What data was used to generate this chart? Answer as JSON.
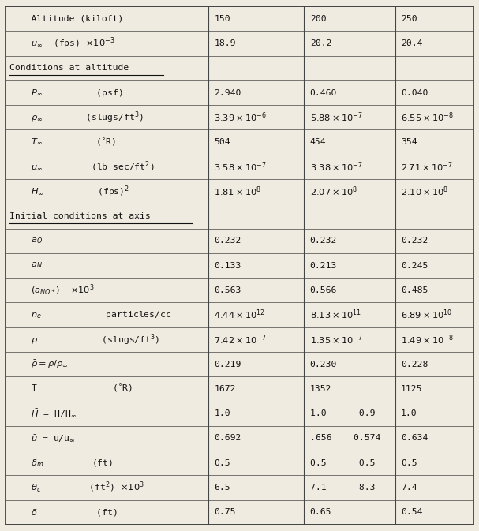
{
  "figsize": [
    6.07,
    6.73
  ],
  "dpi": 100,
  "bg_color": "#f0ebe0",
  "border_color": "#444444",
  "col_bounds": [
    0.012,
    0.435,
    0.635,
    0.825,
    0.988
  ],
  "mathtext_rows": [
    [
      "    Altitude (kiloft)",
      "150",
      "200",
      "250",
      false
    ],
    [
      "    $u_{\\infty}$  (fps) $\\times 10^{-3}$",
      "18.9",
      "20.2",
      "20.4",
      false
    ],
    [
      "Conditions at altitude",
      "",
      "",
      "",
      true
    ],
    [
      "    $P_{\\infty}$          (psf)",
      "2.940",
      "0.460",
      "0.040",
      false
    ],
    [
      "    $\\rho_{\\infty}$        (slugs/ft$^{3}$)",
      "$3.39 \\times 10^{-6}$",
      "$5.88 \\times 10^{-7}$",
      "$6.55 \\times 10^{-8}$",
      false
    ],
    [
      "    $T_{\\infty}$          ($^{\\circ}$R)",
      "504",
      "454",
      "354",
      false
    ],
    [
      "    $\\mu_{\\infty}$         (lb sec/ft$^{2}$)",
      "$3.58 \\times 10^{-7}$",
      "$3.38 \\times 10^{-7}$",
      "$2.71 \\times 10^{-7}$",
      false
    ],
    [
      "    $H_{\\infty}$          (fps)$^{2}$",
      "$1.81 \\times 10^{8}$",
      "$2.07 \\times 10^{8}$",
      "$2.10 \\times 10^{8}$",
      false
    ],
    [
      "Initial conditions at axis",
      "",
      "",
      "",
      true
    ],
    [
      "    $a_O$",
      "0.232",
      "0.232",
      "0.232",
      false
    ],
    [
      "    $a_N$",
      "0.133",
      "0.213",
      "0.245",
      false
    ],
    [
      "    $(a_{NO^+})$  $\\times 10^{3}$",
      "0.563",
      "0.566",
      "0.485",
      false
    ],
    [
      "    $n_e$            particles/cc",
      "$4.44 \\times 10^{12}$",
      "$8.13 \\times 10^{11}$",
      "$6.89 \\times 10^{10}$",
      false
    ],
    [
      "    $\\rho$            (slugs/ft$^{3}$)",
      "$7.42 \\times 10^{-7}$",
      "$1.35 \\times 10^{-7}$",
      "$1.49 \\times 10^{-8}$",
      false
    ],
    [
      "    $\\bar{\\rho} = \\rho/\\rho_{\\infty}$",
      "0.219",
      "0.230",
      "0.228",
      false
    ],
    [
      "    T              ($^{\\circ}$R)",
      "1672",
      "1352",
      "1125",
      false
    ],
    [
      "    $\\bar{H}$ = H/H$_{\\infty}$",
      "1.0",
      "1.0      0.9",
      "1.0",
      false
    ],
    [
      "    $\\bar{u}$ = u/u$_{\\infty}$",
      "0.692",
      ".656    0.574",
      "0.634",
      false
    ],
    [
      "    $\\delta_m$         (ft)",
      "0.5",
      "0.5      0.5",
      "0.5",
      false
    ],
    [
      "    $\\theta_c$         (ft$^{2}$) $\\times 10^{3}$",
      "6.5",
      "7.1      8.3",
      "7.4",
      false
    ],
    [
      "    $\\delta$           (ft)",
      "0.75",
      "0.65",
      "0.54",
      false
    ]
  ]
}
